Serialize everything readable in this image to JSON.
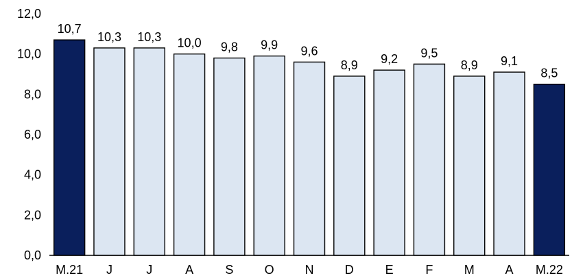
{
  "chart_data": {
    "type": "bar",
    "categories": [
      "M.21",
      "J",
      "J",
      "A",
      "S",
      "O",
      "N",
      "D",
      "E",
      "F",
      "M",
      "A",
      "M.22"
    ],
    "values": [
      10.7,
      10.3,
      10.3,
      10.0,
      9.8,
      9.9,
      9.6,
      8.9,
      9.2,
      9.5,
      8.9,
      9.1,
      8.5
    ],
    "value_labels": [
      "10,7",
      "10,3",
      "10,3",
      "10,0",
      "9,8",
      "9,9",
      "9,6",
      "8,9",
      "9,2",
      "9,5",
      "8,9",
      "9,1",
      "8,5"
    ],
    "highlighted": [
      0,
      12
    ],
    "ylim": [
      0,
      12
    ],
    "yticks": [
      0,
      2,
      4,
      6,
      8,
      10,
      12
    ],
    "ytick_labels": [
      "0,0",
      "2,0",
      "4,0",
      "6,0",
      "8,0",
      "10,0",
      "12,0"
    ],
    "title": "",
    "xlabel": "",
    "ylabel": "",
    "grid": false,
    "colors": {
      "highlight_fill": "#0a1f5c",
      "bar_fill": "#dce6f2",
      "bar_stroke": "#000000",
      "axis": "#000000"
    }
  }
}
